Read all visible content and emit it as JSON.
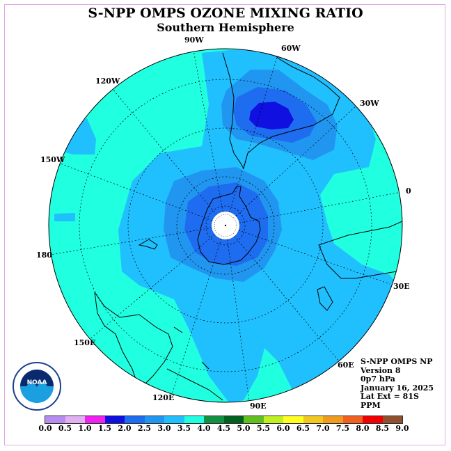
{
  "title": "S-NPP OMPS OZONE MIXING RATIO",
  "subtitle": "Southern Hemisphere",
  "longitude_labels": [
    "90W",
    "60W",
    "120W",
    "30W",
    "150W",
    "0",
    "180",
    "30E",
    "150E",
    "60E",
    "120E",
    "90E"
  ],
  "info": {
    "line1": "S-NPP OMPS NP",
    "line2": "Version 8",
    "line3": "0p7 hPa",
    "line4": "January 16, 2025",
    "line5": "Lat Ext = 81S",
    "line6": "PPM"
  },
  "logo_text": "NOAA",
  "colorbar": {
    "ticks": [
      "0.0",
      "0.5",
      "1.0",
      "1.5",
      "2.0",
      "2.5",
      "3.0",
      "3.5",
      "4.0",
      "4.5",
      "5.0",
      "5.5",
      "6.0",
      "6.5",
      "7.0",
      "7.5",
      "8.0",
      "8.5",
      "9.0"
    ],
    "colors": [
      "#b68cf0",
      "#e0b0f0",
      "#f020f0",
      "#1010e0",
      "#1e6cf0",
      "#2096f0",
      "#20c0ff",
      "#20ffe0",
      "#109040",
      "#006020",
      "#60c020",
      "#c0f020",
      "#ffff20",
      "#f0c820",
      "#f09a20",
      "#f06020",
      "#f00000",
      "#905030"
    ]
  },
  "colors": {
    "land_outline": "#000000",
    "grid": "#000000",
    "polar_cap": "#ffffff"
  }
}
